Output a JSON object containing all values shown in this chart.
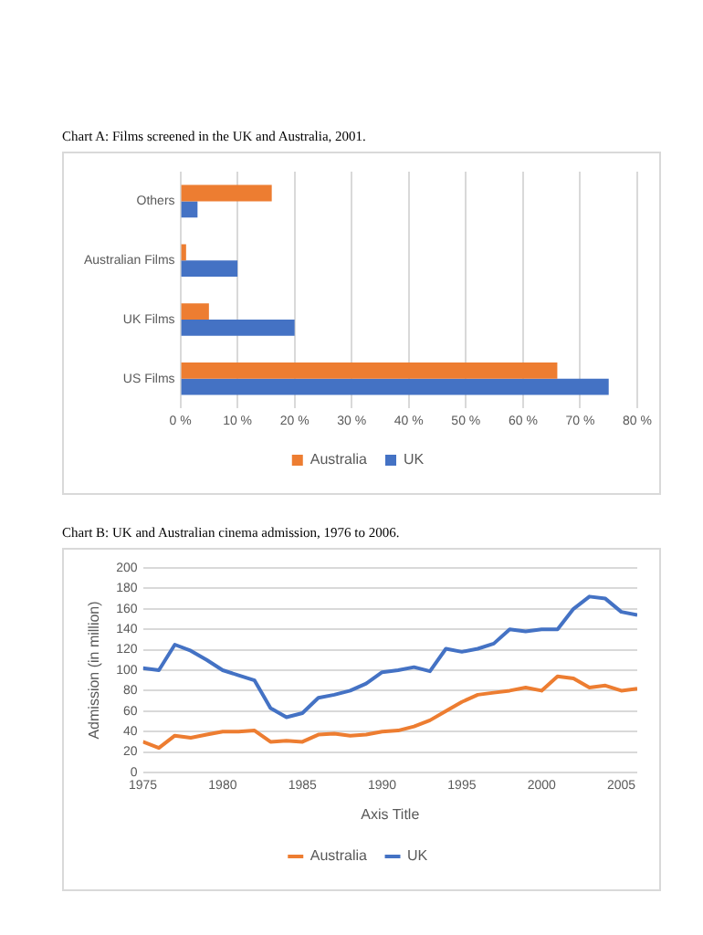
{
  "chart_data": [
    {
      "type": "bar",
      "orientation": "horizontal",
      "title": "Chart A: Films screened in the UK and Australia, 2001.",
      "categories": [
        "Others",
        "Australian Films",
        "UK Films",
        "US Films"
      ],
      "series": [
        {
          "name": "Australia",
          "color": "#ed7d31",
          "values": [
            16,
            1,
            5,
            66
          ]
        },
        {
          "name": "UK",
          "color": "#4472c4",
          "values": [
            3,
            10,
            20,
            75
          ]
        }
      ],
      "xlim": [
        0,
        80
      ],
      "xticks": [
        {
          "value": 0,
          "label": "0 %"
        },
        {
          "value": 10,
          "label": "10 %"
        },
        {
          "value": 20,
          "label": "20 %"
        },
        {
          "value": 30,
          "label": "30 %"
        },
        {
          "value": 40,
          "label": "40 %"
        },
        {
          "value": 50,
          "label": "50 %"
        },
        {
          "value": 60,
          "label": "60 %"
        },
        {
          "value": 70,
          "label": "70 %"
        },
        {
          "value": 80,
          "label": "80 %"
        }
      ],
      "grid": "x",
      "legend": "bottom"
    },
    {
      "type": "line",
      "title": "Chart B: UK and Australian cinema admission, 1976 to 2006.",
      "xlabel": "Axis Title",
      "ylabel": "Admission (in million)",
      "x": [
        1975,
        1976,
        1977,
        1978,
        1979,
        1980,
        1981,
        1982,
        1983,
        1984,
        1985,
        1986,
        1987,
        1988,
        1989,
        1990,
        1991,
        1992,
        1993,
        1994,
        1995,
        1996,
        1997,
        1998,
        1999,
        2000,
        2001,
        2002,
        2003,
        2004,
        2005,
        2006
      ],
      "series": [
        {
          "name": "Australia",
          "color": "#ed7d31",
          "values": [
            30,
            24,
            36,
            34,
            37,
            40,
            40,
            41,
            30,
            31,
            30,
            37,
            38,
            36,
            37,
            40,
            41,
            45,
            51,
            60,
            69,
            76,
            78,
            80,
            83,
            80,
            94,
            92,
            83,
            85,
            80,
            82
          ]
        },
        {
          "name": "UK",
          "color": "#4472c4",
          "values": [
            102,
            100,
            125,
            119,
            110,
            100,
            95,
            90,
            63,
            54,
            58,
            73,
            76,
            80,
            87,
            98,
            100,
            103,
            99,
            121,
            118,
            121,
            126,
            140,
            138,
            140,
            140,
            160,
            172,
            170,
            157,
            154
          ]
        }
      ],
      "xlim": [
        1975,
        2006
      ],
      "xticks": [
        1975,
        1980,
        1985,
        1990,
        1995,
        2000,
        2005
      ],
      "ylim": [
        0,
        200
      ],
      "yticks": [
        0,
        20,
        40,
        60,
        80,
        100,
        120,
        140,
        160,
        180,
        200
      ],
      "grid": "y",
      "legend": "bottom",
      "marker": "none",
      "line_style": "solid"
    }
  ]
}
